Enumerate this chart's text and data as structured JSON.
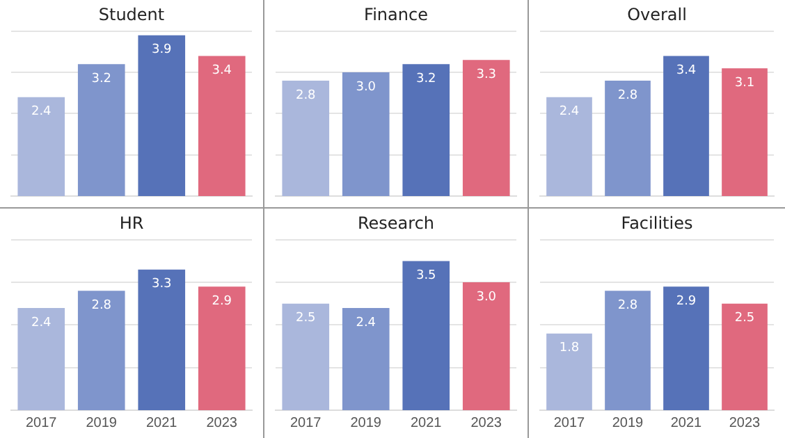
{
  "chart_data": [
    {
      "type": "bar",
      "title": "Student",
      "categories": [
        null,
        null,
        null,
        null
      ],
      "values": [
        2.4,
        3.2,
        3.9,
        3.4
      ],
      "value_labels": [
        "2.4",
        "3.2",
        "3.9",
        "3.4"
      ],
      "colors": [
        "#aab7dc",
        "#7f95cc",
        "#5672b8",
        "#e0697e"
      ],
      "ylim": [
        0,
        4
      ],
      "yticks": [
        {
          "value": 1,
          "label": null
        },
        {
          "value": 2,
          "label": null
        },
        {
          "value": 3,
          "label": null
        },
        {
          "value": 4,
          "label": null
        }
      ],
      "grid": "y",
      "tick_labels": false
    },
    {
      "type": "bar",
      "title": "Finance",
      "categories": [
        null,
        null,
        null,
        null
      ],
      "values": [
        2.8,
        3.0,
        3.2,
        3.3
      ],
      "value_labels": [
        "2.8",
        "3.0",
        "3.2",
        "3.3"
      ],
      "colors": [
        "#aab7dc",
        "#7f95cc",
        "#5672b8",
        "#e0697e"
      ],
      "ylim": [
        0,
        4
      ],
      "yticks": [
        {
          "value": 1,
          "label": null
        },
        {
          "value": 2,
          "label": null
        },
        {
          "value": 3,
          "label": null
        },
        {
          "value": 4,
          "label": null
        }
      ],
      "grid": "y",
      "tick_labels": false
    },
    {
      "type": "bar",
      "title": "Overall",
      "categories": [
        null,
        null,
        null,
        null
      ],
      "values": [
        2.4,
        2.8,
        3.4,
        3.1
      ],
      "value_labels": [
        "2.4",
        "2.8",
        "3.4",
        "3.1"
      ],
      "colors": [
        "#aab7dc",
        "#7f95cc",
        "#5672b8",
        "#e0697e"
      ],
      "ylim": [
        0,
        4
      ],
      "yticks": [
        {
          "value": 1,
          "label": null
        },
        {
          "value": 2,
          "label": null
        },
        {
          "value": 3,
          "label": null
        },
        {
          "value": 4,
          "label": null
        }
      ],
      "grid": "y",
      "tick_labels": false
    },
    {
      "type": "bar",
      "title": "HR",
      "categories": [
        "2017",
        "2019",
        "2021",
        "2023"
      ],
      "values": [
        2.4,
        2.8,
        3.3,
        2.9
      ],
      "value_labels": [
        "2.4",
        "2.8",
        "3.3",
        "2.9"
      ],
      "colors": [
        "#aab7dc",
        "#7f95cc",
        "#5672b8",
        "#e0697e"
      ],
      "ylim": [
        0,
        4
      ],
      "yticks": [
        {
          "value": 1,
          "label": null
        },
        {
          "value": 2,
          "label": null
        },
        {
          "value": 3,
          "label": null
        },
        {
          "value": 4,
          "label": null
        }
      ],
      "grid": "y",
      "tick_labels": "x"
    },
    {
      "type": "bar",
      "title": "Research",
      "categories": [
        "2017",
        "2019",
        "2021",
        "2023"
      ],
      "values": [
        2.5,
        2.4,
        3.5,
        3.0
      ],
      "value_labels": [
        "2.5",
        "2.4",
        "3.5",
        "3.0"
      ],
      "colors": [
        "#aab7dc",
        "#7f95cc",
        "#5672b8",
        "#e0697e"
      ],
      "ylim": [
        0,
        4
      ],
      "yticks": [
        {
          "value": 1,
          "label": null
        },
        {
          "value": 2,
          "label": null
        },
        {
          "value": 3,
          "label": null
        },
        {
          "value": 4,
          "label": null
        }
      ],
      "grid": "y",
      "tick_labels": "x"
    },
    {
      "type": "bar",
      "title": "Facilities",
      "categories": [
        "2017",
        "2019",
        "2021",
        "2023"
      ],
      "values": [
        1.8,
        2.8,
        2.9,
        2.5
      ],
      "value_labels": [
        "1.8",
        "2.8",
        "2.9",
        "2.5"
      ],
      "colors": [
        "#aab7dc",
        "#7f95cc",
        "#5672b8",
        "#e0697e"
      ],
      "ylim": [
        0,
        4
      ],
      "yticks": [
        {
          "value": 1,
          "label": null
        },
        {
          "value": 2,
          "label": null
        },
        {
          "value": 3,
          "label": null
        },
        {
          "value": 4,
          "label": null
        }
      ],
      "grid": "y",
      "tick_labels": "x"
    }
  ]
}
